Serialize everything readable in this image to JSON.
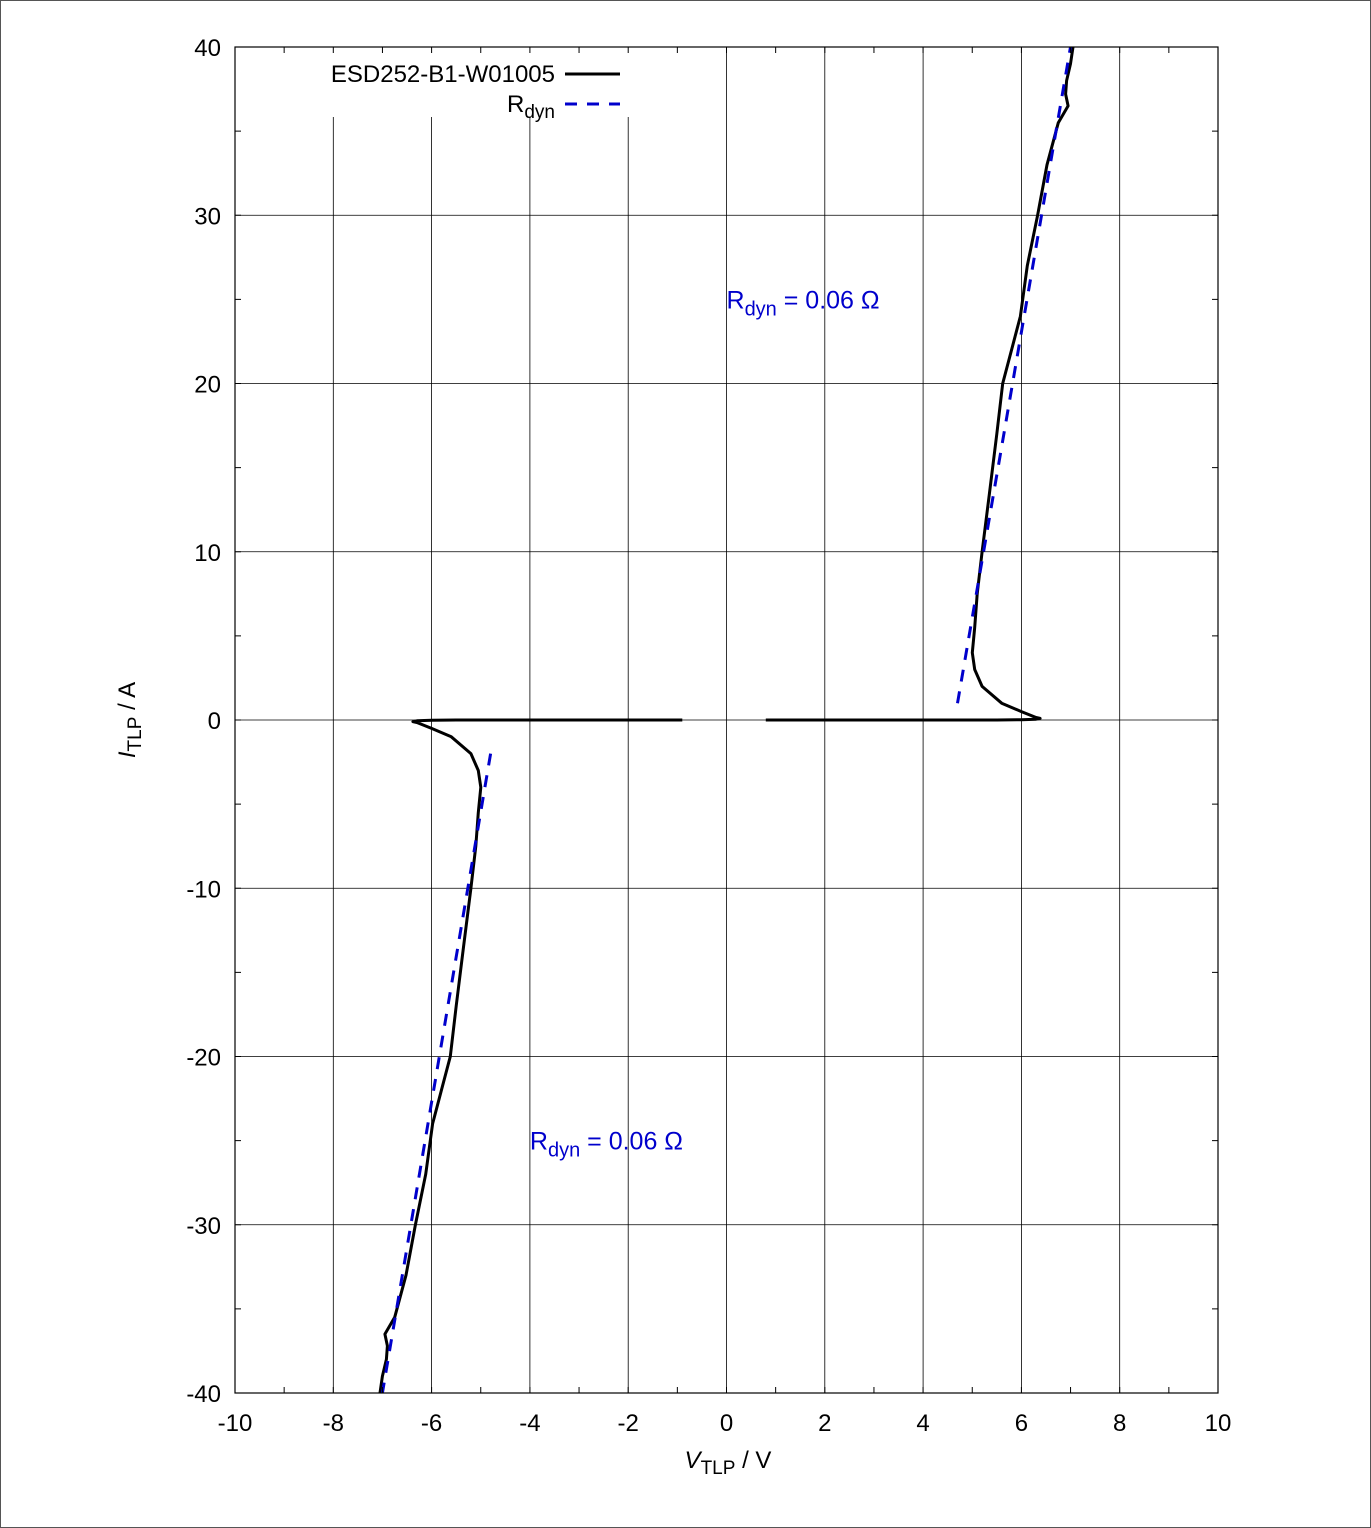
{
  "chart_data": {
    "type": "line",
    "xlabel_main": "V",
    "xlabel_sub": "TLP",
    "xlabel_unit": " / V",
    "ylabel_main": "I",
    "ylabel_sub": "TLP",
    "ylabel_unit": " / A",
    "xlim": [
      -10,
      10
    ],
    "ylim": [
      -40,
      40
    ],
    "xticks": [
      -10,
      -8,
      -6,
      -4,
      -2,
      0,
      2,
      4,
      6,
      8,
      10
    ],
    "yticks": [
      40,
      30,
      20,
      10,
      0,
      -10,
      -20,
      -30,
      -40
    ],
    "grid": true,
    "legend_position": "top-left",
    "series": [
      {
        "name": "ESD252-B1-W01005",
        "color": "#000000",
        "style": "solid",
        "segments": [
          [
            [
              0.8,
              0
            ],
            [
              2,
              0
            ],
            [
              4,
              0
            ],
            [
              5.5,
              0
            ],
            [
              6.0,
              0.02
            ],
            [
              6.3,
              0.05
            ],
            [
              6.38,
              0.1
            ],
            [
              6.3,
              0.15
            ],
            [
              6.0,
              0.5
            ],
            [
              5.6,
              1.0
            ],
            [
              5.2,
              2.0
            ],
            [
              5.05,
              3.0
            ],
            [
              5.0,
              4.0
            ],
            [
              5.05,
              5.5
            ],
            [
              5.1,
              7.5
            ],
            [
              5.2,
              10.0
            ],
            [
              5.35,
              13.5
            ],
            [
              5.5,
              17.0
            ],
            [
              5.62,
              20.0
            ],
            [
              5.8,
              22.0
            ],
            [
              5.98,
              24.0
            ],
            [
              6.12,
              27.0
            ],
            [
              6.33,
              30.0
            ],
            [
              6.52,
              33.0
            ],
            [
              6.75,
              35.5
            ],
            [
              6.95,
              36.5
            ],
            [
              6.9,
              37.2
            ],
            [
              6.92,
              38.0
            ],
            [
              7.0,
              39.0
            ],
            [
              7.05,
              40.0
            ]
          ],
          [
            [
              -0.9,
              0
            ],
            [
              -2,
              0
            ],
            [
              -4,
              0
            ],
            [
              -5.5,
              0
            ],
            [
              -6.0,
              -0.02
            ],
            [
              -6.3,
              -0.05
            ],
            [
              -6.38,
              -0.1
            ],
            [
              -6.3,
              -0.15
            ],
            [
              -6.0,
              -0.5
            ],
            [
              -5.6,
              -1.0
            ],
            [
              -5.2,
              -2.0
            ],
            [
              -5.05,
              -3.0
            ],
            [
              -5.0,
              -4.0
            ],
            [
              -5.05,
              -5.5
            ],
            [
              -5.1,
              -7.5
            ],
            [
              -5.2,
              -10.0
            ],
            [
              -5.35,
              -13.5
            ],
            [
              -5.5,
              -17.0
            ],
            [
              -5.62,
              -20.0
            ],
            [
              -5.8,
              -22.0
            ],
            [
              -5.98,
              -24.0
            ],
            [
              -6.12,
              -27.0
            ],
            [
              -6.33,
              -30.0
            ],
            [
              -6.52,
              -33.0
            ],
            [
              -6.75,
              -35.5
            ],
            [
              -6.95,
              -36.5
            ],
            [
              -6.9,
              -37.2
            ],
            [
              -6.92,
              -38.0
            ],
            [
              -7.0,
              -39.0
            ],
            [
              -7.05,
              -40.0
            ]
          ]
        ]
      },
      {
        "name": "R",
        "name_sub": "dyn",
        "color": "#0000cc",
        "style": "dashed",
        "segments": [
          [
            [
              4.7,
              1.0
            ],
            [
              7.0,
              40.0
            ]
          ],
          [
            [
              -4.8,
              -2.0
            ],
            [
              -7.0,
              -40.0
            ]
          ]
        ]
      }
    ],
    "annotations": [
      {
        "main": "R",
        "sub": "dyn",
        "rest": " = 0.06 Ω",
        "color": "#0000cc",
        "x": 0.0,
        "y": 25.0
      },
      {
        "main": "R",
        "sub": "dyn",
        "rest": " = 0.06 Ω",
        "color": "#0000cc",
        "x": -4.0,
        "y": -25.0
      }
    ]
  }
}
